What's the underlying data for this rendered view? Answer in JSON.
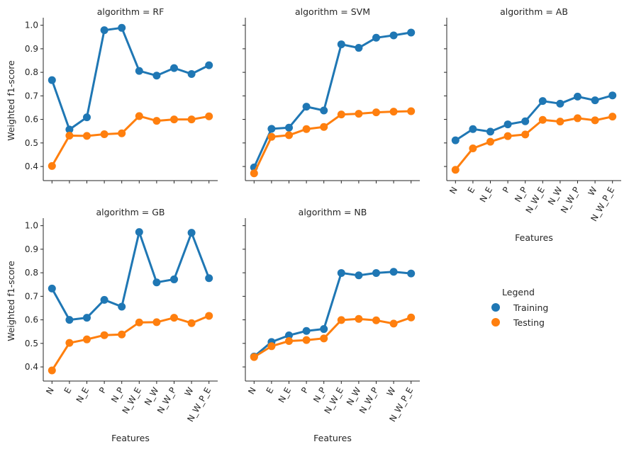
{
  "chart_data": {
    "type": "line",
    "xlabel": "Features",
    "ylabel": "Weighted f1-score",
    "categories": [
      "N",
      "E",
      "N_E",
      "P",
      "N_P",
      "N_W_E",
      "N_W",
      "N_W_P",
      "W",
      "N_W_P_E"
    ],
    "ylim": [
      0.34,
      1.02
    ],
    "yticks": [
      0.4,
      0.5,
      0.6,
      0.7,
      0.8,
      0.9,
      1.0
    ],
    "grid": false,
    "legend": {
      "title": "Legend",
      "placement": "right",
      "entries": [
        "Training",
        "Testing"
      ]
    },
    "colors": {
      "Training": "#1f77b4",
      "Testing": "#ff7f0e"
    },
    "facets": [
      {
        "title": "algorithm = RF",
        "series": [
          {
            "name": "Training",
            "values": [
              0.767,
              0.557,
              0.609,
              0.979,
              0.989,
              0.806,
              0.786,
              0.818,
              0.793,
              0.83
            ]
          },
          {
            "name": "Testing",
            "values": [
              0.402,
              0.531,
              0.53,
              0.537,
              0.541,
              0.614,
              0.594,
              0.6,
              0.6,
              0.613
            ]
          }
        ]
      },
      {
        "title": "algorithm = SVM",
        "series": [
          {
            "name": "Training",
            "values": [
              0.396,
              0.56,
              0.565,
              0.654,
              0.638,
              0.919,
              0.904,
              0.947,
              0.957,
              0.969
            ]
          },
          {
            "name": "Testing",
            "values": [
              0.371,
              0.526,
              0.533,
              0.559,
              0.568,
              0.621,
              0.624,
              0.63,
              0.633,
              0.635
            ]
          }
        ]
      },
      {
        "title": "algorithm = AB",
        "series": [
          {
            "name": "Training",
            "values": [
              0.511,
              0.559,
              0.548,
              0.579,
              0.592,
              0.678,
              0.667,
              0.697,
              0.681,
              0.702
            ]
          },
          {
            "name": "Testing",
            "values": [
              0.386,
              0.477,
              0.505,
              0.529,
              0.536,
              0.598,
              0.591,
              0.605,
              0.596,
              0.612
            ]
          }
        ]
      },
      {
        "title": "algorithm = GB",
        "series": [
          {
            "name": "Training",
            "values": [
              0.733,
              0.6,
              0.609,
              0.685,
              0.656,
              0.973,
              0.759,
              0.772,
              0.97,
              0.777
            ]
          },
          {
            "name": "Testing",
            "values": [
              0.385,
              0.502,
              0.517,
              0.535,
              0.538,
              0.589,
              0.59,
              0.609,
              0.586,
              0.617
            ]
          }
        ]
      },
      {
        "title": "algorithm = NB",
        "series": [
          {
            "name": "Training",
            "values": [
              0.444,
              0.506,
              0.534,
              0.553,
              0.561,
              0.799,
              0.789,
              0.799,
              0.804,
              0.797
            ]
          },
          {
            "name": "Testing",
            "values": [
              0.442,
              0.488,
              0.51,
              0.514,
              0.521,
              0.599,
              0.604,
              0.598,
              0.584,
              0.61
            ]
          }
        ]
      }
    ]
  }
}
